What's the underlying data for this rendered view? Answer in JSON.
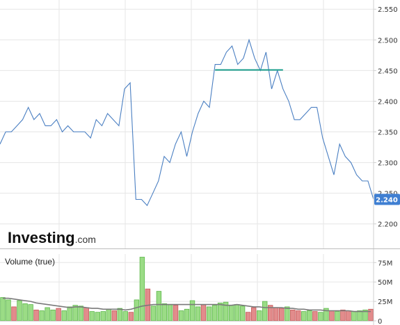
{
  "logo": {
    "brand": "Investing",
    "suffix": ".com"
  },
  "price_label": "2.240",
  "colors": {
    "price_line": "#4a7fc2",
    "grid": "#e6e6e6",
    "axis": "#cfcfcf",
    "trendline": "#1a9e8c",
    "label_bg": "#3f7fd2",
    "vol_up": "#9bdc86",
    "vol_up_edge": "#5cb84a",
    "vol_down": "#e28c8c",
    "vol_down_edge": "#c65757",
    "vol_ma": "#7a7a7a"
  },
  "chart_data": [
    {
      "type": "line",
      "series": [
        {
          "values": [
            2.33,
            2.35,
            2.35,
            2.36,
            2.37,
            2.39,
            2.37,
            2.38,
            2.36,
            2.36,
            2.37,
            2.35,
            2.36,
            2.35,
            2.35,
            2.35,
            2.34,
            2.37,
            2.36,
            2.38,
            2.37,
            2.36,
            2.42,
            2.43,
            2.24,
            2.24,
            2.23,
            2.25,
            2.27,
            2.31,
            2.3,
            2.33,
            2.35,
            2.31,
            2.35,
            2.38,
            2.4,
            2.39,
            2.46,
            2.46,
            2.48,
            2.49,
            2.46,
            2.47,
            2.5,
            2.47,
            2.45,
            2.48,
            2.42,
            2.45,
            2.42,
            2.4,
            2.37,
            2.37,
            2.38,
            2.39,
            2.39,
            2.34,
            2.31,
            2.28,
            2.33,
            2.31,
            2.3,
            2.28,
            2.27,
            2.27,
            2.24
          ]
        }
      ],
      "yticks": [
        "2.200",
        "2.250",
        "2.300",
        "2.350",
        "2.400",
        "2.450",
        "2.500",
        "2.550"
      ],
      "ylim": [
        2.16,
        2.565
      ],
      "grid": true,
      "last_value": 2.24,
      "annotations": [
        {
          "type": "horizontal-line",
          "value": 2.451,
          "x_start_index": 38,
          "x_end_index": 50
        }
      ]
    },
    {
      "type": "bar",
      "title": "Volume (true)",
      "yticks": [
        "0",
        "25M",
        "50M",
        "75M"
      ],
      "ylim": [
        0,
        86
      ],
      "grid": true,
      "values": [
        30,
        27,
        18,
        26,
        22,
        21,
        14,
        13,
        17,
        14,
        16,
        13,
        18,
        20,
        19,
        17,
        12,
        11,
        12,
        15,
        13,
        16,
        12,
        11,
        27,
        82,
        41,
        19,
        38,
        22,
        21,
        20,
        13,
        15,
        26,
        18,
        21,
        18,
        20,
        23,
        24,
        20,
        21,
        19,
        11,
        17,
        13,
        25,
        20,
        17,
        16,
        18,
        14,
        13,
        12,
        13,
        12,
        11,
        16,
        13,
        12,
        14,
        13,
        12,
        13,
        14,
        15
      ],
      "up": [
        1,
        1,
        0,
        1,
        1,
        1,
        0,
        1,
        1,
        1,
        0,
        1,
        1,
        1,
        1,
        0,
        1,
        1,
        1,
        1,
        0,
        1,
        1,
        0,
        1,
        1,
        0,
        1,
        1,
        1,
        1,
        0,
        1,
        1,
        1,
        1,
        0,
        1,
        1,
        1,
        1,
        1,
        1,
        1,
        0,
        0,
        1,
        1,
        0,
        0,
        0,
        1,
        0,
        0,
        1,
        1,
        0,
        1,
        1,
        0,
        1,
        0,
        0,
        1,
        1,
        1,
        0
      ],
      "ma_values": [
        29,
        29,
        28,
        27,
        26,
        25,
        23,
        22,
        21,
        20,
        19,
        18,
        17,
        18,
        18,
        17,
        16,
        16,
        15,
        15,
        15,
        15,
        14,
        15,
        17,
        19,
        20,
        21,
        21,
        21,
        21,
        21,
        21,
        21,
        21,
        21,
        21,
        21,
        21,
        21,
        20,
        20,
        21,
        20,
        19,
        18,
        18,
        17,
        17,
        17,
        17,
        16,
        16,
        15,
        15,
        14,
        14,
        14,
        13,
        13,
        13,
        13,
        13,
        12,
        12,
        12,
        12
      ]
    }
  ]
}
